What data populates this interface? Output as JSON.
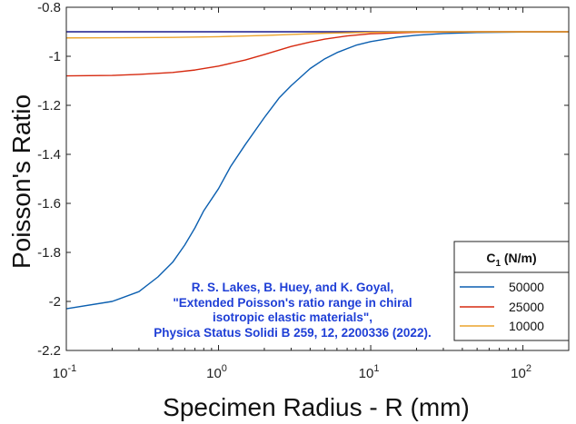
{
  "chart_data": {
    "type": "line",
    "xlabel": "Specimen Radius - R (mm)",
    "ylabel": "Poisson's Ratio",
    "xscale": "log",
    "xlim": [
      0.1,
      200
    ],
    "ylim": [
      -2.2,
      -0.8
    ],
    "x_ticks": [
      0.1,
      1,
      10,
      100
    ],
    "x_tick_labels": [
      {
        "base": "10",
        "exp": "-1"
      },
      {
        "base": "10",
        "exp": "0"
      },
      {
        "base": "10",
        "exp": "1"
      },
      {
        "base": "10",
        "exp": "2"
      }
    ],
    "y_ticks": [
      -0.8,
      -1,
      -1.2,
      -1.4,
      -1.6,
      -1.8,
      -2,
      -2.2
    ],
    "y_tick_labels": [
      "-0.8",
      "-1",
      "-1.2",
      "-1.4",
      "-1.6",
      "-1.8",
      "-2",
      "-2.2"
    ],
    "grid": false,
    "legend": {
      "title_main": "C",
      "title_sub": "1",
      "title_rest": " (N/m)",
      "placement": "bottom-right"
    },
    "reference_line": {
      "y": -0.9,
      "color": "#1a1a8c"
    },
    "series": [
      {
        "name": "50000",
        "color": "#0b5fb0",
        "x": [
          0.1,
          0.2,
          0.3,
          0.4,
          0.5,
          0.6,
          0.7,
          0.8,
          1.0,
          1.2,
          1.5,
          2.0,
          2.5,
          3.0,
          4.0,
          5.0,
          6.0,
          8.0,
          10,
          15,
          20,
          30,
          50,
          100,
          200
        ],
        "values": [
          -2.03,
          -2.0,
          -1.96,
          -1.9,
          -1.84,
          -1.77,
          -1.7,
          -1.63,
          -1.54,
          -1.45,
          -1.36,
          -1.25,
          -1.17,
          -1.12,
          -1.05,
          -1.01,
          -0.985,
          -0.955,
          -0.94,
          -0.922,
          -0.914,
          -0.907,
          -0.903,
          -0.901,
          -0.9
        ]
      },
      {
        "name": "25000",
        "color": "#d62a10",
        "x": [
          0.1,
          0.2,
          0.3,
          0.5,
          0.7,
          1.0,
          1.5,
          2.0,
          3.0,
          4.0,
          5.0,
          7.0,
          10,
          20,
          50,
          100,
          200
        ],
        "values": [
          -1.08,
          -1.078,
          -1.074,
          -1.066,
          -1.056,
          -1.04,
          -1.015,
          -0.993,
          -0.96,
          -0.942,
          -0.93,
          -0.917,
          -0.908,
          -0.902,
          -0.9,
          -0.9,
          -0.9
        ]
      },
      {
        "name": "10000",
        "color": "#eba32b",
        "x": [
          0.1,
          0.3,
          0.5,
          1.0,
          2.0,
          3.0,
          5.0,
          10,
          20,
          50,
          100,
          200
        ],
        "values": [
          -0.925,
          -0.924,
          -0.923,
          -0.92,
          -0.915,
          -0.911,
          -0.906,
          -0.902,
          -0.9,
          -0.9,
          -0.9,
          -0.9
        ]
      }
    ],
    "annotation": [
      "R. S. Lakes, B. Huey, and K. Goyal,",
      "\"Extended Poisson's ratio range in chiral",
      "isotropic elastic materials\",",
      "Physica Status Solidi B 259, 12, 2200336 (2022)."
    ]
  }
}
